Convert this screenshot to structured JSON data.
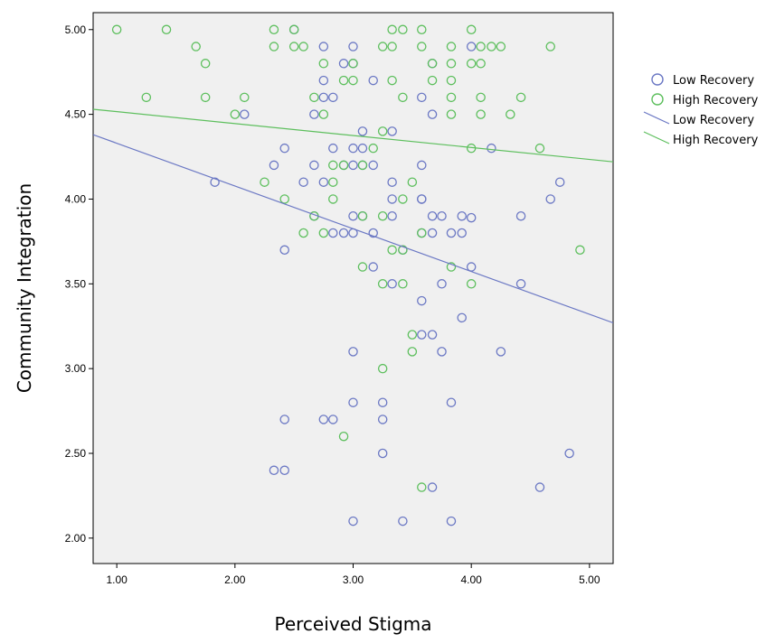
{
  "chart_data": {
    "type": "scatter",
    "title": "",
    "xlabel": "Perceived Stigma",
    "ylabel": "Community Integration",
    "xlim": [
      0.8,
      5.2
    ],
    "ylim": [
      1.85,
      5.1
    ],
    "xticks": [
      1.0,
      2.0,
      3.0,
      4.0,
      5.0
    ],
    "xtick_labels": [
      "1.00",
      "2.00",
      "3.00",
      "4.00",
      "5.00"
    ],
    "yticks": [
      2.0,
      2.5,
      3.0,
      3.5,
      4.0,
      4.5,
      5.0
    ],
    "ytick_labels": [
      "2.00",
      "2.50",
      "3.00",
      "3.50",
      "4.00",
      "4.50",
      "5.00"
    ],
    "grid": false,
    "legend_position": "right",
    "background": "#f0f0f0",
    "series": [
      {
        "name": "Low Recovery",
        "kind": "points",
        "color": "#6b78c4",
        "points": [
          [
            2.5,
            5.0
          ],
          [
            2.75,
            4.9
          ],
          [
            3.0,
            4.9
          ],
          [
            4.0,
            4.9
          ],
          [
            2.92,
            4.8
          ],
          [
            3.0,
            4.8
          ],
          [
            3.67,
            4.8
          ],
          [
            2.75,
            4.7
          ],
          [
            3.17,
            4.7
          ],
          [
            2.75,
            4.6
          ],
          [
            2.83,
            4.6
          ],
          [
            3.58,
            4.6
          ],
          [
            2.08,
            4.5
          ],
          [
            2.67,
            4.5
          ],
          [
            3.67,
            4.5
          ],
          [
            3.08,
            4.4
          ],
          [
            3.33,
            4.4
          ],
          [
            2.42,
            4.3
          ],
          [
            2.83,
            4.3
          ],
          [
            3.0,
            4.3
          ],
          [
            3.08,
            4.3
          ],
          [
            4.17,
            4.3
          ],
          [
            2.33,
            4.2
          ],
          [
            2.67,
            4.2
          ],
          [
            2.92,
            4.2
          ],
          [
            3.0,
            4.2
          ],
          [
            3.08,
            4.2
          ],
          [
            3.17,
            4.2
          ],
          [
            3.58,
            4.2
          ],
          [
            1.83,
            4.1
          ],
          [
            2.58,
            4.1
          ],
          [
            2.75,
            4.1
          ],
          [
            3.33,
            4.1
          ],
          [
            4.75,
            4.1
          ],
          [
            3.33,
            4.0
          ],
          [
            3.58,
            4.0
          ],
          [
            3.58,
            4.0
          ],
          [
            4.67,
            4.0
          ],
          [
            2.67,
            3.9
          ],
          [
            3.0,
            3.9
          ],
          [
            3.08,
            3.9
          ],
          [
            3.33,
            3.9
          ],
          [
            3.67,
            3.9
          ],
          [
            3.75,
            3.9
          ],
          [
            3.92,
            3.9
          ],
          [
            4.0,
            3.89
          ],
          [
            4.42,
            3.9
          ],
          [
            2.83,
            3.8
          ],
          [
            2.92,
            3.8
          ],
          [
            3.0,
            3.8
          ],
          [
            3.17,
            3.8
          ],
          [
            3.58,
            3.8
          ],
          [
            3.67,
            3.8
          ],
          [
            3.83,
            3.8
          ],
          [
            3.92,
            3.8
          ],
          [
            2.42,
            3.7
          ],
          [
            3.42,
            3.7
          ],
          [
            3.17,
            3.6
          ],
          [
            4.0,
            3.6
          ],
          [
            3.33,
            3.5
          ],
          [
            3.75,
            3.5
          ],
          [
            4.42,
            3.5
          ],
          [
            3.58,
            3.4
          ],
          [
            3.92,
            3.3
          ],
          [
            3.58,
            3.2
          ],
          [
            3.67,
            3.2
          ],
          [
            3.0,
            3.1
          ],
          [
            3.75,
            3.1
          ],
          [
            4.25,
            3.1
          ],
          [
            3.0,
            2.8
          ],
          [
            3.25,
            2.8
          ],
          [
            3.83,
            2.8
          ],
          [
            2.42,
            2.7
          ],
          [
            2.75,
            2.7
          ],
          [
            2.83,
            2.7
          ],
          [
            3.25,
            2.7
          ],
          [
            3.25,
            2.5
          ],
          [
            4.83,
            2.5
          ],
          [
            2.33,
            2.4
          ],
          [
            2.42,
            2.4
          ],
          [
            3.67,
            2.3
          ],
          [
            4.58,
            2.3
          ],
          [
            3.0,
            2.1
          ],
          [
            3.42,
            2.1
          ],
          [
            3.83,
            2.1
          ]
        ]
      },
      {
        "name": "High Recovery",
        "kind": "points",
        "color": "#5dbf5d",
        "points": [
          [
            1.0,
            5.0
          ],
          [
            1.42,
            5.0
          ],
          [
            2.33,
            5.0
          ],
          [
            2.5,
            5.0
          ],
          [
            3.33,
            5.0
          ],
          [
            3.42,
            5.0
          ],
          [
            3.58,
            5.0
          ],
          [
            4.0,
            5.0
          ],
          [
            1.67,
            4.9
          ],
          [
            2.33,
            4.9
          ],
          [
            2.5,
            4.9
          ],
          [
            2.58,
            4.9
          ],
          [
            3.25,
            4.9
          ],
          [
            3.33,
            4.9
          ],
          [
            3.58,
            4.9
          ],
          [
            3.83,
            4.9
          ],
          [
            4.08,
            4.9
          ],
          [
            4.17,
            4.9
          ],
          [
            4.25,
            4.9
          ],
          [
            4.67,
            4.9
          ],
          [
            1.75,
            4.8
          ],
          [
            2.75,
            4.8
          ],
          [
            3.0,
            4.8
          ],
          [
            3.67,
            4.8
          ],
          [
            3.83,
            4.8
          ],
          [
            4.0,
            4.8
          ],
          [
            4.08,
            4.8
          ],
          [
            2.92,
            4.7
          ],
          [
            3.0,
            4.7
          ],
          [
            3.33,
            4.7
          ],
          [
            3.67,
            4.7
          ],
          [
            3.83,
            4.7
          ],
          [
            1.25,
            4.6
          ],
          [
            1.75,
            4.6
          ],
          [
            2.08,
            4.6
          ],
          [
            2.67,
            4.6
          ],
          [
            3.42,
            4.6
          ],
          [
            3.83,
            4.6
          ],
          [
            4.08,
            4.6
          ],
          [
            4.42,
            4.6
          ],
          [
            2.0,
            4.5
          ],
          [
            2.75,
            4.5
          ],
          [
            3.83,
            4.5
          ],
          [
            4.08,
            4.5
          ],
          [
            4.33,
            4.5
          ],
          [
            3.25,
            4.4
          ],
          [
            3.17,
            4.3
          ],
          [
            4.0,
            4.3
          ],
          [
            4.58,
            4.3
          ],
          [
            2.83,
            4.2
          ],
          [
            2.92,
            4.2
          ],
          [
            3.08,
            4.2
          ],
          [
            2.25,
            4.1
          ],
          [
            2.83,
            4.1
          ],
          [
            3.5,
            4.1
          ],
          [
            2.42,
            4.0
          ],
          [
            2.83,
            4.0
          ],
          [
            3.42,
            4.0
          ],
          [
            2.67,
            3.9
          ],
          [
            3.08,
            3.9
          ],
          [
            3.25,
            3.9
          ],
          [
            2.58,
            3.8
          ],
          [
            2.75,
            3.8
          ],
          [
            3.58,
            3.8
          ],
          [
            3.33,
            3.7
          ],
          [
            3.42,
            3.7
          ],
          [
            4.92,
            3.7
          ],
          [
            3.08,
            3.6
          ],
          [
            3.83,
            3.6
          ],
          [
            3.25,
            3.5
          ],
          [
            3.42,
            3.5
          ],
          [
            4.0,
            3.5
          ],
          [
            3.5,
            3.2
          ],
          [
            3.5,
            3.1
          ],
          [
            3.25,
            3.0
          ],
          [
            2.92,
            2.6
          ],
          [
            3.58,
            2.3
          ]
        ]
      },
      {
        "name": "Low Recovery",
        "kind": "fit_line",
        "color": "#6b78c4",
        "line": {
          "x": [
            0.8,
            5.2
          ],
          "y": [
            4.38,
            3.27
          ]
        }
      },
      {
        "name": "High Recovery",
        "kind": "fit_line",
        "color": "#5dbf5d",
        "line": {
          "x": [
            0.8,
            5.2
          ],
          "y": [
            4.53,
            4.22
          ]
        }
      }
    ]
  }
}
